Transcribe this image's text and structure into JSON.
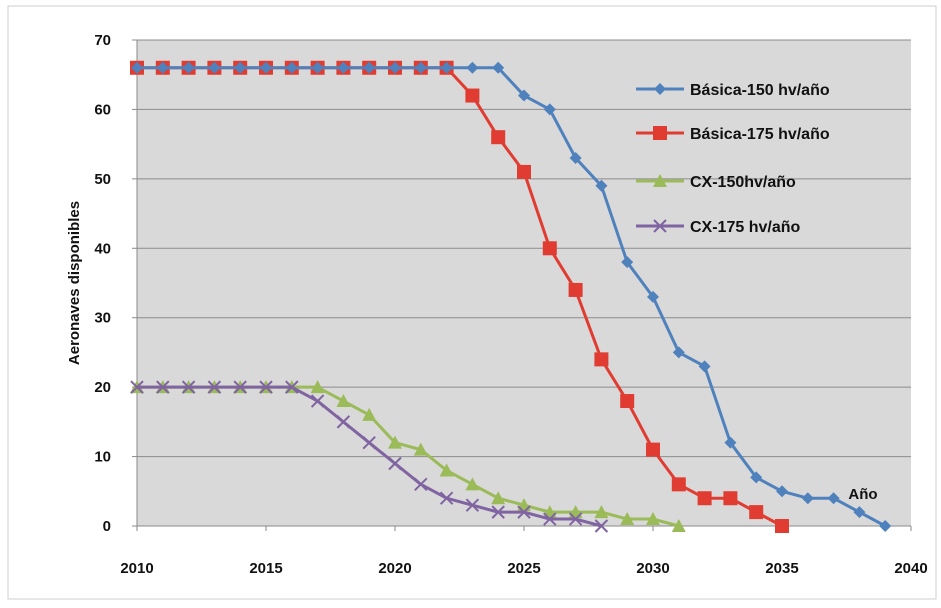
{
  "chart_data": {
    "type": "line",
    "title": "",
    "xlabel": "Año",
    "ylabel": "Aeronaves disponibles",
    "xlim": [
      2010,
      2040
    ],
    "ylim": [
      0,
      70
    ],
    "xticks": [
      2010,
      2015,
      2020,
      2025,
      2030,
      2035,
      2040
    ],
    "yticks": [
      0,
      10,
      20,
      30,
      40,
      50,
      60,
      70
    ],
    "grid": "horizontal",
    "legend_position": "top-right",
    "plot_background": "#d9d9d9",
    "series": [
      {
        "name": "Básica-150 hv/año",
        "color": "#4f81bd",
        "marker": "diamond",
        "x": [
          2010,
          2011,
          2012,
          2013,
          2014,
          2015,
          2016,
          2017,
          2018,
          2019,
          2020,
          2021,
          2022,
          2023,
          2024,
          2025,
          2026,
          2027,
          2028,
          2029,
          2030,
          2031,
          2032,
          2033,
          2034,
          2035,
          2036,
          2037,
          2038,
          2039
        ],
        "y": [
          66,
          66,
          66,
          66,
          66,
          66,
          66,
          66,
          66,
          66,
          66,
          66,
          66,
          66,
          66,
          62,
          60,
          53,
          49,
          38,
          33,
          25,
          23,
          12,
          7,
          5,
          4,
          4,
          2,
          0
        ]
      },
      {
        "name": "Básica-175 hv/año",
        "color": "#e03c31",
        "marker": "square",
        "x": [
          2010,
          2011,
          2012,
          2013,
          2014,
          2015,
          2016,
          2017,
          2018,
          2019,
          2020,
          2021,
          2022,
          2023,
          2024,
          2025,
          2026,
          2027,
          2028,
          2029,
          2030,
          2031,
          2032,
          2033,
          2034,
          2035
        ],
        "y": [
          66,
          66,
          66,
          66,
          66,
          66,
          66,
          66,
          66,
          66,
          66,
          66,
          66,
          62,
          56,
          51,
          40,
          34,
          24,
          18,
          11,
          6,
          4,
          4,
          2,
          0
        ]
      },
      {
        "name": "CX-150hv/año",
        "color": "#9bbb59",
        "marker": "triangle",
        "x": [
          2010,
          2011,
          2012,
          2013,
          2014,
          2015,
          2016,
          2017,
          2018,
          2019,
          2020,
          2021,
          2022,
          2023,
          2024,
          2025,
          2026,
          2027,
          2028,
          2029,
          2030,
          2031
        ],
        "y": [
          20,
          20,
          20,
          20,
          20,
          20,
          20,
          20,
          18,
          16,
          12,
          11,
          8,
          6,
          4,
          3,
          2,
          2,
          2,
          1,
          1,
          0
        ]
      },
      {
        "name": "CX-175 hv/año",
        "color": "#8064a2",
        "marker": "x",
        "x": [
          2010,
          2011,
          2012,
          2013,
          2014,
          2015,
          2016,
          2017,
          2018,
          2019,
          2020,
          2021,
          2022,
          2023,
          2024,
          2025,
          2026,
          2027,
          2028
        ],
        "y": [
          20,
          20,
          20,
          20,
          20,
          20,
          20,
          18,
          15,
          12,
          9,
          6,
          4,
          3,
          2,
          2,
          1,
          1,
          0
        ]
      }
    ]
  }
}
